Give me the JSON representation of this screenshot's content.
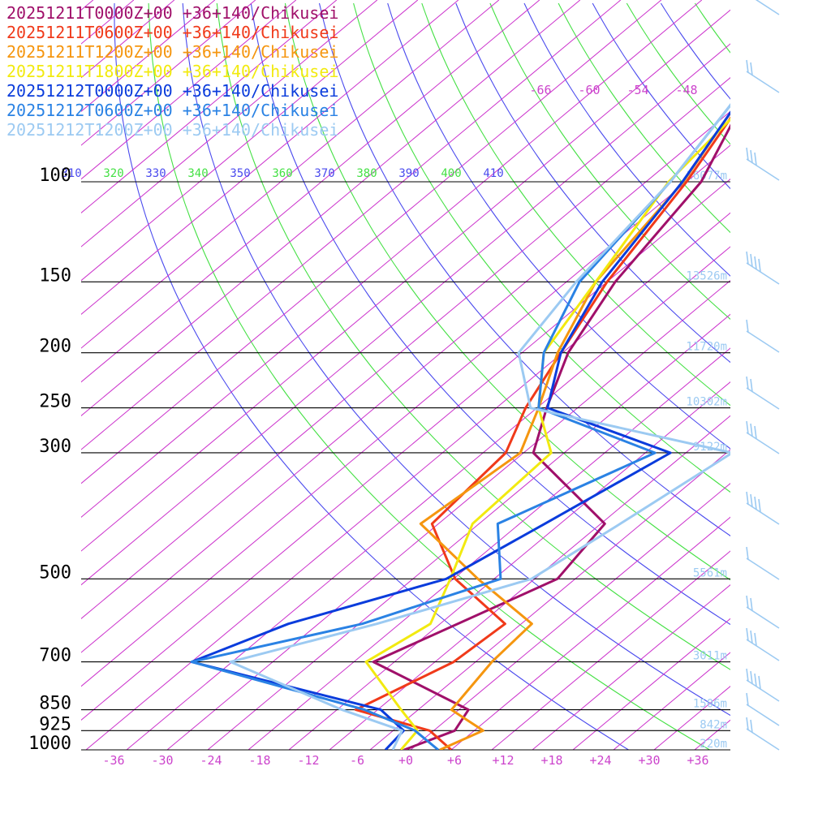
{
  "chart_data": {
    "type": "line",
    "title": "",
    "xlabel": "",
    "ylabel": "",
    "xlim": [
      -40,
      40
    ],
    "pressure_axis": "log",
    "ylim": [
      1000,
      55
    ],
    "pressure_ticks": [
      100,
      150,
      200,
      250,
      300,
      500,
      700,
      850,
      925,
      1000
    ],
    "height_labels": [
      {
        "p": 100,
        "label": "16077m"
      },
      {
        "p": 150,
        "label": "13526m"
      },
      {
        "p": 200,
        "label": "11720m"
      },
      {
        "p": 250,
        "label": "10302m"
      },
      {
        "p": 300,
        "label": "9122m"
      },
      {
        "p": 500,
        "label": "5561m"
      },
      {
        "p": 700,
        "label": "3011m"
      },
      {
        "p": 850,
        "label": "1506m"
      },
      {
        "p": 925,
        "label": "842m"
      },
      {
        "p": 1000,
        "label": "220m"
      }
    ],
    "temp_ticks": [
      "-36",
      "-30",
      "-24",
      "-18",
      "-12",
      "-6",
      "+0",
      "+6",
      "+12",
      "+18",
      "+24",
      "+30",
      "+36"
    ],
    "upper_temp_labels": [
      "-66",
      "-60",
      "-54",
      "-48"
    ],
    "theta_labels": [
      "310",
      "320",
      "330",
      "340",
      "350",
      "360",
      "370",
      "380",
      "390",
      "400",
      "410"
    ],
    "grid": true,
    "legend": "top-left",
    "series": [
      {
        "name": "20251211T0000Z+00 +36+140/Chikusei",
        "color": "#a0106a",
        "points": [
          [
            1000,
            -0.8
          ],
          [
            925,
            2.6
          ],
          [
            850,
            1.2
          ],
          [
            700,
            -17.6
          ],
          [
            500,
            -7.2
          ],
          [
            400,
            -9.5
          ],
          [
            300,
            -28.8
          ],
          [
            250,
            -33.8
          ],
          [
            200,
            -39.3
          ],
          [
            150,
            -44.0
          ],
          [
            100,
            -48.2
          ],
          [
            70,
            -55.5
          ],
          [
            55,
            -57
          ]
        ]
      },
      {
        "name": "20251211T0600Z+00 +36+140/Chikusei",
        "color": "#f03a1a",
        "points": [
          [
            1000,
            5.0
          ],
          [
            925,
            -0.5
          ],
          [
            850,
            -12.7
          ],
          [
            700,
            -7.7
          ],
          [
            600,
            -7.0
          ],
          [
            500,
            -19.8
          ],
          [
            400,
            -30.8
          ],
          [
            300,
            -32.2
          ],
          [
            250,
            -36.4
          ],
          [
            200,
            -40.2
          ],
          [
            150,
            -45.0
          ],
          [
            100,
            -50.0
          ],
          [
            70,
            -55.5
          ],
          [
            55,
            -57
          ]
        ]
      },
      {
        "name": "20251211T1200Z+00 +36+140/Chikusei",
        "color": "#f5960f",
        "points": [
          [
            1000,
            3.6
          ],
          [
            925,
            6.1
          ],
          [
            850,
            -0.9
          ],
          [
            700,
            -3.0
          ],
          [
            600,
            -3.7
          ],
          [
            500,
            -17.0
          ],
          [
            400,
            -32.2
          ],
          [
            300,
            -30.4
          ],
          [
            250,
            -34.8
          ],
          [
            200,
            -40.6
          ],
          [
            150,
            -46.4
          ],
          [
            100,
            -50.4
          ],
          [
            70,
            -56
          ],
          [
            55,
            -57
          ]
        ]
      },
      {
        "name": "20251211T1800Z+00 +36+140/Chikusei",
        "color": "#f2ea10",
        "points": [
          [
            1000,
            -1.2
          ],
          [
            925,
            -2.0
          ],
          [
            850,
            -7.1
          ],
          [
            700,
            -18.5
          ],
          [
            600,
            -16.2
          ],
          [
            500,
            -20.4
          ],
          [
            400,
            -25.8
          ],
          [
            300,
            -26.6
          ],
          [
            250,
            -34.8
          ],
          [
            200,
            -42.3
          ],
          [
            150,
            -46.4
          ],
          [
            100,
            -52.2
          ],
          [
            70,
            -54.5
          ],
          [
            55,
            -58
          ]
        ]
      },
      {
        "name": "20251212T0000Z+00 +36+140/Chikusei",
        "color": "#0a3cdc",
        "points": [
          [
            1000,
            -3.1
          ],
          [
            925,
            -3.7
          ],
          [
            850,
            -9.6
          ],
          [
            700,
            -40.0
          ],
          [
            600,
            -33.7
          ],
          [
            500,
            -20.9
          ],
          [
            400,
            -16.9
          ],
          [
            300,
            -11.9
          ],
          [
            250,
            -33.7
          ],
          [
            200,
            -40.2
          ],
          [
            150,
            -45.6
          ],
          [
            100,
            -50.5
          ],
          [
            70,
            -56
          ],
          [
            55,
            -58
          ]
        ]
      },
      {
        "name": "20251212T0600Z+00 +36+140/Chikusei",
        "color": "#2a82e4",
        "points": [
          [
            1000,
            3.4
          ],
          [
            925,
            -2.3
          ],
          [
            850,
            -11.6
          ],
          [
            700,
            -40.0
          ],
          [
            600,
            -24.6
          ],
          [
            500,
            -14.2
          ],
          [
            400,
            -22.7
          ],
          [
            300,
            -13.8
          ],
          [
            250,
            -34.8
          ],
          [
            200,
            -42.3
          ],
          [
            150,
            -48.4
          ],
          [
            100,
            -52.0
          ],
          [
            70,
            -56.5
          ],
          [
            55,
            -58
          ]
        ]
      },
      {
        "name": "20251212T1200Z+00 +36+140/Chikusei",
        "color": "#9ccaf2",
        "points": [
          [
            1000,
            -2.2
          ],
          [
            925,
            -3.9
          ],
          [
            850,
            -14.4
          ],
          [
            700,
            -35.2
          ],
          [
            600,
            -22.8
          ],
          [
            500,
            -10.4
          ],
          [
            400,
            -7.6
          ],
          [
            300,
            -4.3
          ],
          [
            250,
            -35.8
          ],
          [
            200,
            -45.4
          ],
          [
            150,
            -48.8
          ],
          [
            100,
            -52.0
          ],
          [
            70,
            -56.5
          ],
          [
            55,
            -58
          ]
        ]
      }
    ]
  }
}
